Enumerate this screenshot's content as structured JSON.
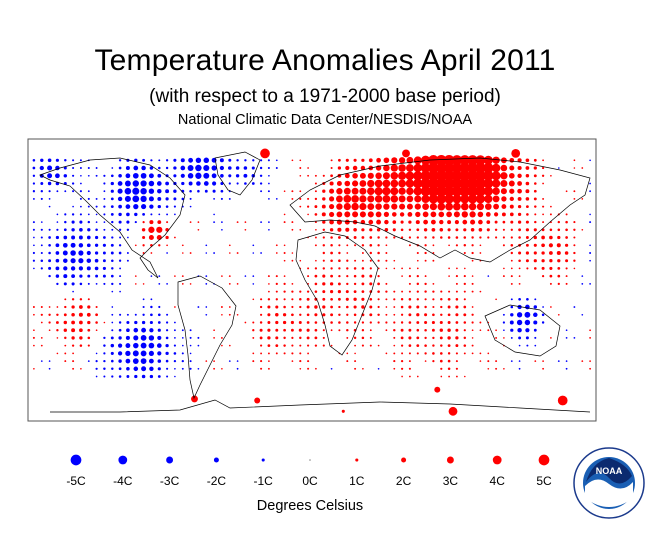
{
  "chart_data": {
    "type": "scatter",
    "title": "Temperature Anomalies April 2011",
    "subtitle": "(with respect to a 1971-2000 base period)",
    "credit": "National Climatic Data Center/NESDIS/NOAA",
    "xlabel": "Degrees Celsius",
    "x_range": [
      -180,
      180
    ],
    "y_range": [
      -90,
      90
    ],
    "grid_spacing_deg": 5,
    "colors": {
      "warm": "#ff0000",
      "cold": "#0000ff",
      "land": "#000000",
      "frame": "#555555"
    },
    "legend": [
      {
        "label": "-5C",
        "value": -5
      },
      {
        "label": "-4C",
        "value": -4
      },
      {
        "label": "-3C",
        "value": -3
      },
      {
        "label": "-2C",
        "value": -2
      },
      {
        "label": "-1C",
        "value": -1
      },
      {
        "label": "0C",
        "value": 0
      },
      {
        "label": "1C",
        "value": 1
      },
      {
        "label": "2C",
        "value": 2
      },
      {
        "label": "3C",
        "value": 3
      },
      {
        "label": "4C",
        "value": 4
      },
      {
        "label": "5C",
        "value": 5
      }
    ],
    "anomaly_regions": [
      {
        "lon": 80,
        "lat": 68,
        "value": 4.5,
        "spread": 28
      },
      {
        "lon": 110,
        "lat": 66,
        "value": 3.5,
        "spread": 26
      },
      {
        "lon": 40,
        "lat": 58,
        "value": 2.5,
        "spread": 22
      },
      {
        "lon": 20,
        "lat": 48,
        "value": 2.0,
        "spread": 18
      },
      {
        "lon": -100,
        "lat": 32,
        "value": 3.0,
        "spread": 9
      },
      {
        "lon": -110,
        "lat": 58,
        "value": -3.0,
        "spread": 18
      },
      {
        "lon": -70,
        "lat": 72,
        "value": -3.0,
        "spread": 14
      },
      {
        "lon": -165,
        "lat": 70,
        "value": -2.0,
        "spread": 12
      },
      {
        "lon": -40,
        "lat": 70,
        "value": -1.5,
        "spread": 10
      },
      {
        "lon": -150,
        "lat": 15,
        "value": -2.0,
        "spread": 22
      },
      {
        "lon": -110,
        "lat": -45,
        "value": -2.5,
        "spread": 20
      },
      {
        "lon": 135,
        "lat": -25,
        "value": -2.5,
        "spread": 11
      },
      {
        "lon": 150,
        "lat": 20,
        "value": 1.5,
        "spread": 18
      },
      {
        "lon": 20,
        "lat": -10,
        "value": 1.0,
        "spread": 28
      },
      {
        "lon": 80,
        "lat": -30,
        "value": 1.0,
        "spread": 28
      },
      {
        "lon": -20,
        "lat": -30,
        "value": 1.0,
        "spread": 20
      },
      {
        "lon": -150,
        "lat": -25,
        "value": 1.5,
        "spread": 18
      }
    ],
    "station_points": [
      {
        "lon": -30,
        "lat": 82,
        "value": 4.5
      },
      {
        "lon": 130,
        "lat": 82,
        "value": 4
      },
      {
        "lon": 60,
        "lat": 82,
        "value": 3.5
      },
      {
        "lon": -75,
        "lat": -77,
        "value": 3
      },
      {
        "lon": 80,
        "lat": -71,
        "value": 2.5
      },
      {
        "lon": 90,
        "lat": -85,
        "value": 4
      },
      {
        "lon": 160,
        "lat": -78,
        "value": 4.5
      },
      {
        "lon": -35,
        "lat": -78,
        "value": 2.5
      },
      {
        "lon": 20,
        "lat": -85,
        "value": 1
      }
    ]
  },
  "logo": {
    "name": "NOAA",
    "text": "NOAA"
  }
}
